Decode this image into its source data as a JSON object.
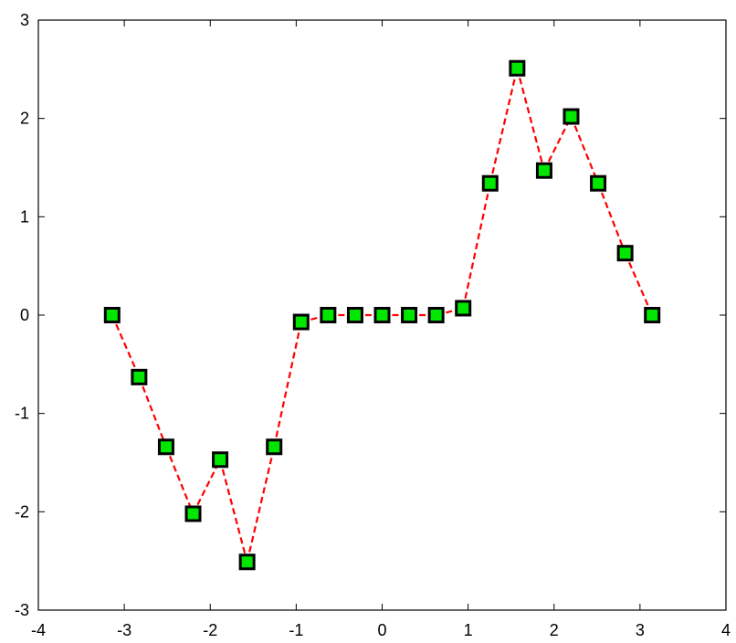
{
  "chart_data": {
    "type": "line",
    "title": "",
    "xlabel": "",
    "ylabel": "",
    "xlim": [
      -4,
      4
    ],
    "ylim": [
      -3,
      3
    ],
    "x_ticks": [
      -4,
      -3,
      -2,
      -1,
      0,
      1,
      2,
      3,
      4
    ],
    "y_ticks": [
      -3,
      -2,
      -1,
      0,
      1,
      2,
      3
    ],
    "x_tick_labels": [
      "-4",
      "-3",
      "-2",
      "-1",
      "0",
      "1",
      "2",
      "3",
      "4"
    ],
    "y_tick_labels": [
      "-3",
      "-2",
      "-1",
      "0",
      "1",
      "2",
      "3"
    ],
    "grid": false,
    "series": [
      {
        "x": [
          -3.1416,
          -2.8274,
          -2.5133,
          -2.1991,
          -1.885,
          -1.5708,
          -1.2566,
          -0.9425,
          -0.6283,
          -0.3142,
          0.0,
          0.3142,
          0.6283,
          0.9425,
          1.2566,
          1.5708,
          1.885,
          2.1991,
          2.5133,
          2.8274,
          3.1416
        ],
        "y": [
          0.0,
          -0.63,
          -1.34,
          -2.02,
          -1.47,
          -2.51,
          -1.34,
          -0.07,
          0.0,
          0.0,
          0.0,
          0.0,
          0.0,
          0.07,
          1.34,
          2.51,
          1.47,
          2.02,
          1.34,
          0.63,
          0.0
        ],
        "line_color": "#ff0000",
        "line_style": "dashed",
        "marker": "square",
        "marker_face_color": "#00e600",
        "marker_edge_color": "#000000"
      }
    ]
  }
}
